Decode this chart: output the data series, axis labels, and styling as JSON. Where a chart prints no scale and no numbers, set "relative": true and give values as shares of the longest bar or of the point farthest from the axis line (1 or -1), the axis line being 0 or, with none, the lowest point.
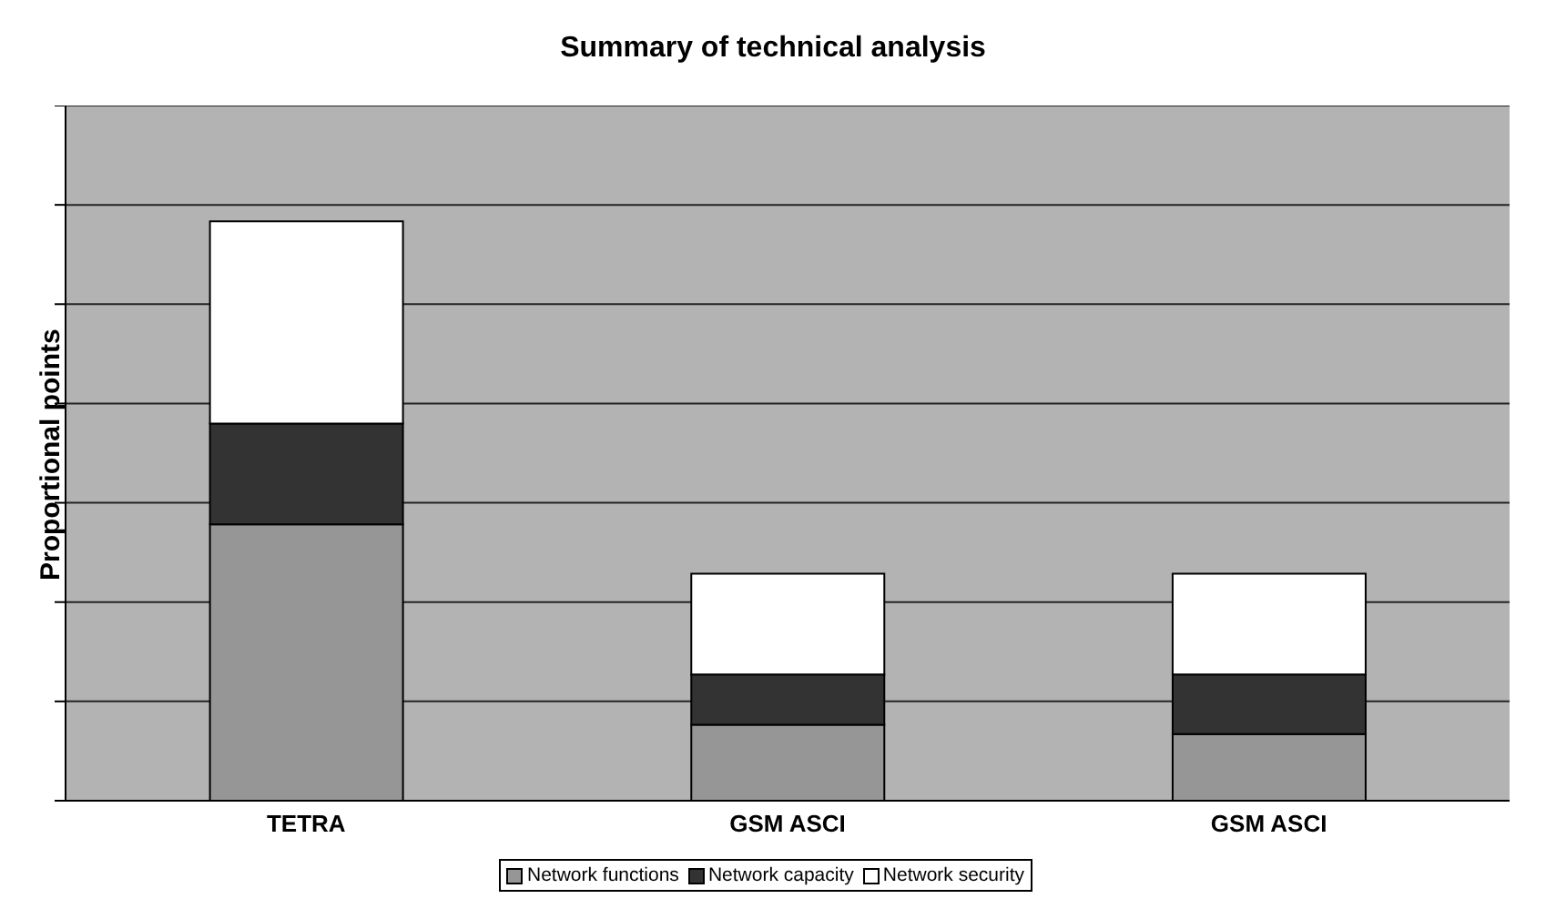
{
  "chart_data": {
    "type": "bar",
    "title": "Summary of technical analysis",
    "ylabel": "Proportional points",
    "categories": [
      "TETRA",
      "GSM ASCI",
      "GSM ASCI"
    ],
    "stacked": true,
    "relative": true,
    "grid": "y",
    "legend": "bottom",
    "series": [
      {
        "name": "Network functions",
        "color": "#969696",
        "values": [
          0.477,
          0.131,
          0.115
        ]
      },
      {
        "name": "Network capacity",
        "color": "#333333",
        "values": [
          0.174,
          0.087,
          0.103
        ]
      },
      {
        "name": "Network security",
        "color": "#ffffff",
        "values": [
          0.349,
          0.174,
          0.174
        ]
      }
    ]
  }
}
